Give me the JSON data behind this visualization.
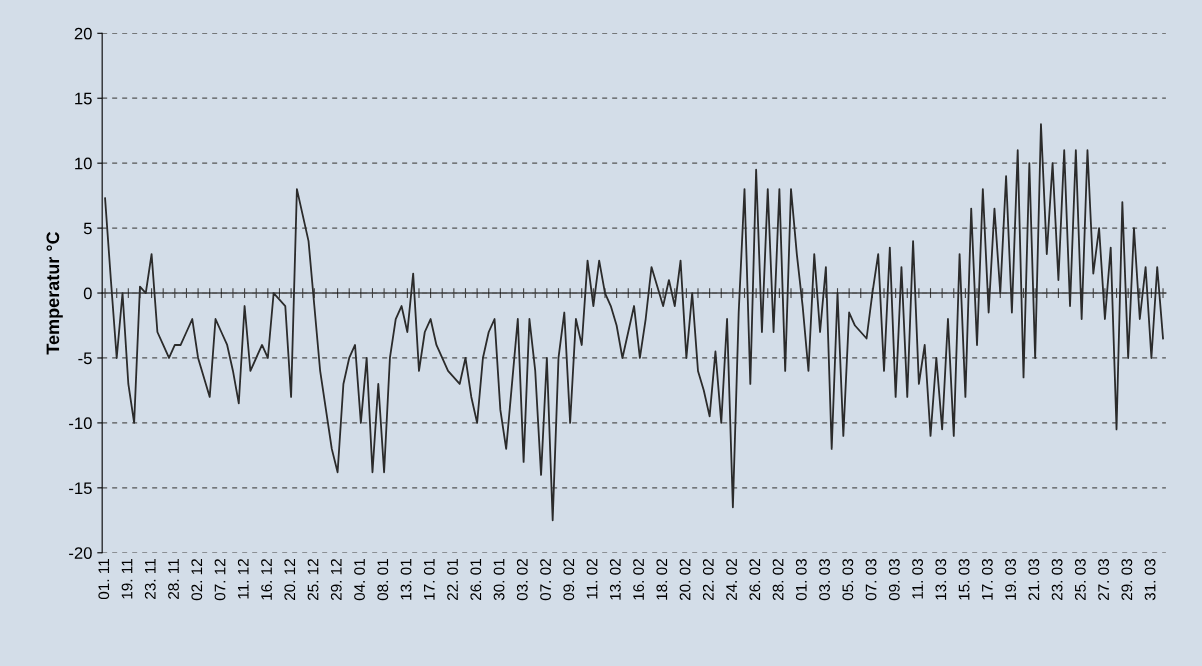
{
  "chart_data": {
    "type": "line",
    "ylabel": "Temperatur °C",
    "categories": [
      "01. 11",
      null,
      null,
      null,
      "19. 11",
      null,
      null,
      null,
      "23. 11",
      null,
      null,
      null,
      "28. 11",
      null,
      null,
      null,
      "02. 12",
      null,
      null,
      null,
      "07. 12",
      null,
      null,
      null,
      "11. 12",
      null,
      null,
      null,
      "16. 12",
      null,
      null,
      null,
      "20. 12",
      null,
      null,
      null,
      "25. 12",
      null,
      null,
      null,
      "29. 12",
      null,
      null,
      null,
      "04. 01",
      null,
      null,
      null,
      "08. 01",
      null,
      null,
      null,
      "13. 01",
      null,
      null,
      null,
      "17. 01",
      null,
      null,
      null,
      "22. 01",
      null,
      null,
      null,
      "26. 01",
      null,
      null,
      null,
      "30. 01",
      null,
      null,
      null,
      "03. 02",
      null,
      null,
      null,
      "07. 02",
      null,
      null,
      null,
      "09. 02",
      null,
      null,
      null,
      "11. 02",
      null,
      null,
      null,
      "13. 02",
      null,
      null,
      null,
      "16. 02",
      null,
      null,
      null,
      "18. 02",
      null,
      null,
      null,
      "20. 02",
      null,
      null,
      null,
      "22. 02",
      null,
      null,
      null,
      "24. 02",
      null,
      null,
      null,
      "26. 02",
      null,
      null,
      null,
      "28. 02",
      null,
      null,
      null,
      "01. 03",
      null,
      null,
      null,
      "03. 03",
      null,
      null,
      null,
      "05. 03",
      null,
      null,
      null,
      "07. 03",
      null,
      null,
      null,
      "09. 03",
      null,
      null,
      null,
      "11. 03",
      null,
      null,
      null,
      "13. 03",
      null,
      null,
      null,
      "15. 03",
      null,
      null,
      null,
      "17. 03",
      null,
      null,
      null,
      "19. 03",
      null,
      null,
      null,
      "21. 03",
      null,
      null,
      null,
      "23. 03",
      null,
      null,
      null,
      "25. 03",
      null,
      null,
      null,
      "27. 03",
      null,
      null,
      null,
      "29. 03",
      null,
      null,
      null,
      "31. 03",
      null,
      null
    ],
    "series": [
      {
        "color": "#2b2b2b",
        "values": [
          7.3,
          1,
          -5,
          0,
          -7,
          -10,
          0.5,
          0,
          3,
          -3,
          -4,
          -5,
          -4,
          -4,
          -3,
          -2,
          -5,
          -6.5,
          -8,
          -2,
          -3,
          -4,
          -6,
          -8.5,
          -1,
          -6,
          -5,
          -4,
          -5,
          0,
          -0.5,
          -1,
          -8,
          8,
          6,
          4,
          -1,
          -6,
          -9,
          -12,
          -13.8,
          -7,
          -5,
          -4,
          -10,
          -5,
          -13.8,
          -7,
          -13.8,
          -5,
          -2,
          -1,
          -3,
          1.5,
          -6,
          -3,
          -2,
          -4,
          -5,
          -6,
          -6.5,
          -7,
          -5,
          -8,
          -10,
          -5,
          -3,
          -2,
          -9,
          -12,
          -7,
          -2,
          -13,
          -2,
          -6,
          -14,
          -5,
          -17.5,
          -5,
          -1.5,
          -10,
          -2,
          -4,
          2.5,
          -1,
          2.5,
          0,
          -1,
          -2.5,
          -5,
          -3,
          -1,
          -5,
          -2,
          2,
          0.5,
          -1,
          1,
          -1,
          2.5,
          -5,
          0,
          -6,
          -7.5,
          -9.5,
          -4.5,
          -10,
          -2,
          -16.5,
          -1.5,
          8,
          -7,
          9.5,
          -3,
          8,
          -3,
          8,
          -6,
          8,
          3,
          -1,
          -6,
          3,
          -3,
          2,
          -12,
          0,
          -11,
          -1.5,
          -2.5,
          -3,
          -3.5,
          0,
          3,
          -6,
          3.5,
          -8,
          2,
          -8,
          4,
          -7,
          -4,
          -11,
          -5,
          -10.5,
          -2,
          -11,
          3,
          -8,
          6.5,
          -4,
          8,
          -1.5,
          6.5,
          0,
          9,
          -1.5,
          11,
          -6.5,
          10,
          -5,
          13,
          3,
          10,
          1,
          11,
          -1,
          11,
          -2,
          11,
          1.5,
          5,
          -2,
          3.5,
          -10.5,
          7,
          -5,
          5,
          -2,
          2,
          -5,
          2,
          -3.5
        ]
      }
    ],
    "ylim": [
      -20,
      20
    ],
    "yticks": [
      -20,
      -15,
      -10,
      -5,
      0,
      5,
      10,
      15,
      20
    ],
    "grid": "y",
    "marker": "none",
    "line_style": "solid"
  }
}
